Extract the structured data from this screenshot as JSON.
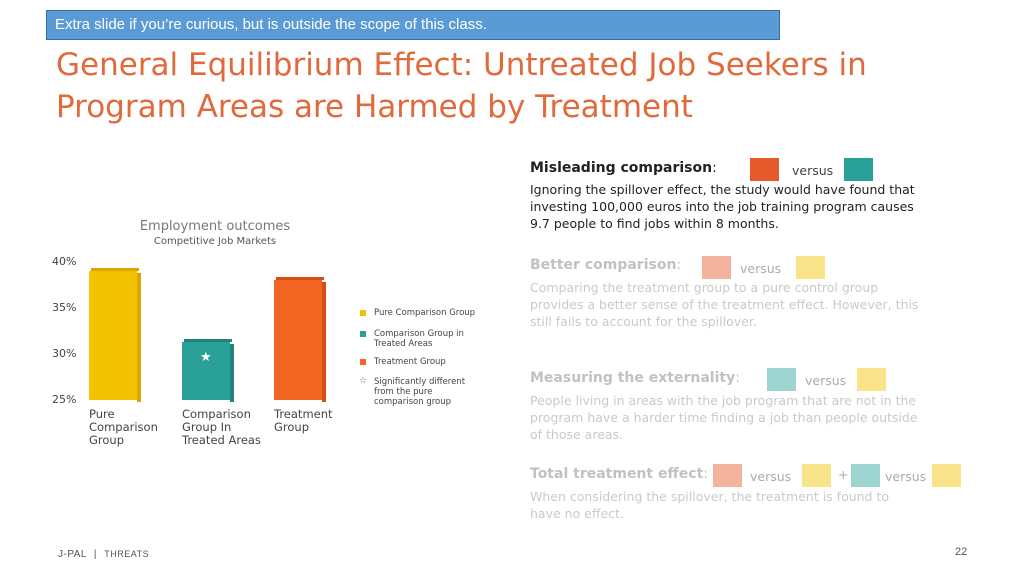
{
  "banner": "Extra slide if you’re curious, but is outside the scope of this class.",
  "title": "General Equilibrium Effect: Untreated Job Seekers in Program Areas are Harmed by Treatment",
  "chart_data": {
    "type": "bar",
    "title": "Employment outcomes",
    "subtitle": "Competitive Job Markets",
    "categories": [
      "Pure Comparison Group",
      "Comparison Group In Treated Areas",
      "Treatment Group"
    ],
    "category_lines": [
      [
        "Pure",
        "Comparison",
        "Group"
      ],
      [
        "Comparison",
        "Group In",
        "Treated Areas"
      ],
      [
        "Treatment",
        "Group"
      ]
    ],
    "values": [
      39,
      31.3,
      38
    ],
    "ylim": [
      25,
      40
    ],
    "yticks": [
      "25%",
      "30%",
      "35%",
      "40%"
    ],
    "colors": [
      "#f2c200",
      "#2aa198",
      "#f26522"
    ],
    "side_colors": [
      "#d9a800",
      "#1d857d",
      "#d44f14"
    ],
    "star_on": [
      1
    ],
    "grid": false,
    "legend_position": "right",
    "legend": [
      {
        "label": "Pure Comparison Group",
        "color": "#f2c200"
      },
      {
        "label": "Comparison Group in Treated Areas",
        "color": "#2aa198"
      },
      {
        "label": "Treatment Group",
        "color": "#f26522"
      },
      {
        "label": "Significantly different from the pure comparison group",
        "icon": "star-outline-icon"
      }
    ]
  },
  "sections": {
    "misleading": {
      "heading": "Misleading comparison",
      "colon": ":",
      "versus": "versus",
      "body": "Ignoring the spillover effect, the study would have found that investing 100,000 euros into the job training program causes 9.7 people to find jobs within 8 months."
    },
    "better": {
      "heading": "Better comparison",
      "colon": ":",
      "versus": "versus",
      "body": "Comparing the treatment group to a pure control group provides a better sense of the treatment effect. However, this still fails to account for the spillover."
    },
    "externality": {
      "heading": "Measuring the externality",
      "colon": ":",
      "versus": "versus",
      "body": "People living in areas with the job program that are not in the program have a harder time finding a job than people outside of those areas."
    },
    "total": {
      "heading": "Total treatment effect",
      "colon": ":",
      "versus1": "versus",
      "plus": "+",
      "versus2": "versus",
      "body": "When considering the spillover, the treatment is found to have no effect."
    }
  },
  "colors": {
    "orange": "#e5592b",
    "teal": "#2aa198",
    "yellow": "#f2c200",
    "title": "#e06a3c",
    "banner": "#5b9bd5"
  },
  "footer": {
    "org": "J-PAL",
    "separator": "|",
    "section": "Threats"
  },
  "page_number": "22"
}
